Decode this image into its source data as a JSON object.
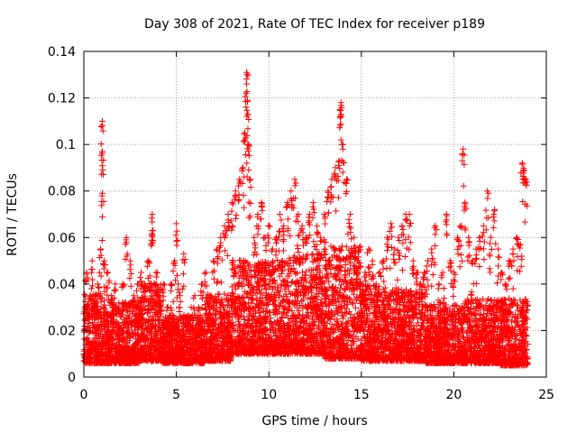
{
  "chart_data": {
    "type": "scatter",
    "title": "Day 308 of 2021, Rate Of TEC Index for receiver p189",
    "xlabel": "GPS time / hours",
    "ylabel": "ROTI / TECUs",
    "xlim": [
      0,
      25
    ],
    "ylim": [
      0,
      0.14
    ],
    "xticks": [
      0,
      5,
      10,
      15,
      20,
      25
    ],
    "xtick_labels": [
      "0",
      "5",
      "10",
      "15",
      "20",
      "25"
    ],
    "yticks": [
      0,
      0.02,
      0.04,
      0.06,
      0.08,
      0.1,
      0.12,
      0.14
    ],
    "ytick_labels": [
      "0",
      "0.02",
      "0.04",
      "0.06",
      "0.08",
      "0.1",
      "0.12",
      "0.14"
    ],
    "grid": true,
    "marker": "+",
    "marker_color": "#ff0000",
    "grid_color": "#a0a0a0",
    "background": "#ffffff",
    "series": [
      {
        "name": "ROTI",
        "x": [
          0.05,
          0.15,
          0.3,
          0.45,
          0.6,
          0.75,
          0.9,
          1.0,
          1.0,
          1.0,
          1.1,
          1.3,
          1.5,
          1.7,
          1.9,
          2.1,
          2.3,
          2.5,
          2.7,
          2.9,
          3.1,
          3.3,
          3.5,
          3.7,
          3.7,
          3.9,
          4.1,
          4.3,
          4.5,
          4.7,
          4.9,
          5.0,
          5.1,
          5.2,
          5.4,
          5.6,
          5.8,
          6.0,
          6.2,
          6.4,
          6.6,
          6.8,
          7.0,
          7.2,
          7.4,
          7.6,
          7.8,
          8.0,
          8.2,
          8.4,
          8.6,
          8.7,
          8.8,
          8.8,
          8.85,
          8.9,
          9.0,
          9.2,
          9.4,
          9.6,
          9.8,
          10.0,
          10.2,
          10.4,
          10.6,
          10.8,
          11.0,
          11.2,
          11.4,
          11.6,
          11.8,
          12.0,
          12.2,
          12.4,
          12.6,
          12.8,
          13.0,
          13.2,
          13.4,
          13.6,
          13.8,
          13.9,
          13.9,
          14.0,
          14.2,
          14.4,
          14.6,
          14.8,
          15.0,
          15.2,
          15.4,
          15.6,
          15.8,
          16.0,
          16.2,
          16.4,
          16.6,
          16.8,
          17.0,
          17.2,
          17.4,
          17.6,
          17.8,
          18.0,
          18.2,
          18.4,
          18.6,
          18.8,
          19.0,
          19.2,
          19.4,
          19.6,
          19.8,
          20.0,
          20.2,
          20.4,
          20.5,
          20.6,
          20.8,
          21.0,
          21.2,
          21.4,
          21.6,
          21.8,
          22.0,
          22.2,
          22.4,
          22.6,
          22.8,
          23.0,
          23.2,
          23.4,
          23.6,
          23.7,
          23.8,
          23.9
        ],
        "y": [
          0.03,
          0.045,
          0.02,
          0.05,
          0.035,
          0.04,
          0.055,
          0.11,
          0.097,
          0.079,
          0.05,
          0.045,
          0.035,
          0.04,
          0.03,
          0.04,
          0.06,
          0.05,
          0.035,
          0.04,
          0.045,
          0.04,
          0.05,
          0.07,
          0.063,
          0.045,
          0.035,
          0.04,
          0.03,
          0.04,
          0.05,
          0.066,
          0.04,
          0.035,
          0.053,
          0.025,
          0.03,
          0.035,
          0.03,
          0.04,
          0.045,
          0.035,
          0.05,
          0.055,
          0.06,
          0.065,
          0.07,
          0.075,
          0.08,
          0.085,
          0.09,
          0.105,
          0.131,
          0.126,
          0.113,
          0.1,
          0.085,
          0.06,
          0.07,
          0.075,
          0.06,
          0.065,
          0.055,
          0.06,
          0.07,
          0.065,
          0.075,
          0.08,
          0.085,
          0.07,
          0.065,
          0.06,
          0.07,
          0.075,
          0.065,
          0.06,
          0.07,
          0.08,
          0.085,
          0.09,
          0.093,
          0.118,
          0.113,
          0.1,
          0.085,
          0.07,
          0.06,
          0.05,
          0.04,
          0.045,
          0.055,
          0.05,
          0.04,
          0.045,
          0.05,
          0.06,
          0.066,
          0.055,
          0.06,
          0.065,
          0.07,
          0.07,
          0.05,
          0.045,
          0.04,
          0.045,
          0.05,
          0.055,
          0.065,
          0.04,
          0.045,
          0.07,
          0.05,
          0.045,
          0.06,
          0.065,
          0.098,
          0.075,
          0.06,
          0.05,
          0.055,
          0.06,
          0.065,
          0.08,
          0.06,
          0.072,
          0.055,
          0.045,
          0.04,
          0.05,
          0.055,
          0.06,
          0.057,
          0.092,
          0.089,
          0.085
        ]
      }
    ],
    "density": [
      {
        "x0": 0.0,
        "x1": 1.0,
        "base": 0.006,
        "top": 0.032
      },
      {
        "x0": 1.0,
        "x1": 3.0,
        "base": 0.006,
        "top": 0.03
      },
      {
        "x0": 3.0,
        "x1": 4.2,
        "base": 0.007,
        "top": 0.036
      },
      {
        "x0": 4.2,
        "x1": 6.5,
        "base": 0.006,
        "top": 0.024
      },
      {
        "x0": 6.5,
        "x1": 8.0,
        "base": 0.007,
        "top": 0.032
      },
      {
        "x0": 8.0,
        "x1": 9.2,
        "base": 0.01,
        "top": 0.045
      },
      {
        "x0": 9.2,
        "x1": 11.0,
        "base": 0.01,
        "top": 0.045
      },
      {
        "x0": 11.0,
        "x1": 13.0,
        "base": 0.01,
        "top": 0.048
      },
      {
        "x0": 13.0,
        "x1": 15.0,
        "base": 0.008,
        "top": 0.05
      },
      {
        "x0": 15.0,
        "x1": 16.5,
        "base": 0.007,
        "top": 0.036
      },
      {
        "x0": 16.5,
        "x1": 18.5,
        "base": 0.007,
        "top": 0.034
      },
      {
        "x0": 18.5,
        "x1": 20.5,
        "base": 0.006,
        "top": 0.028
      },
      {
        "x0": 20.5,
        "x1": 22.5,
        "base": 0.006,
        "top": 0.03
      },
      {
        "x0": 22.5,
        "x1": 24.0,
        "base": 0.005,
        "top": 0.03
      }
    ]
  }
}
